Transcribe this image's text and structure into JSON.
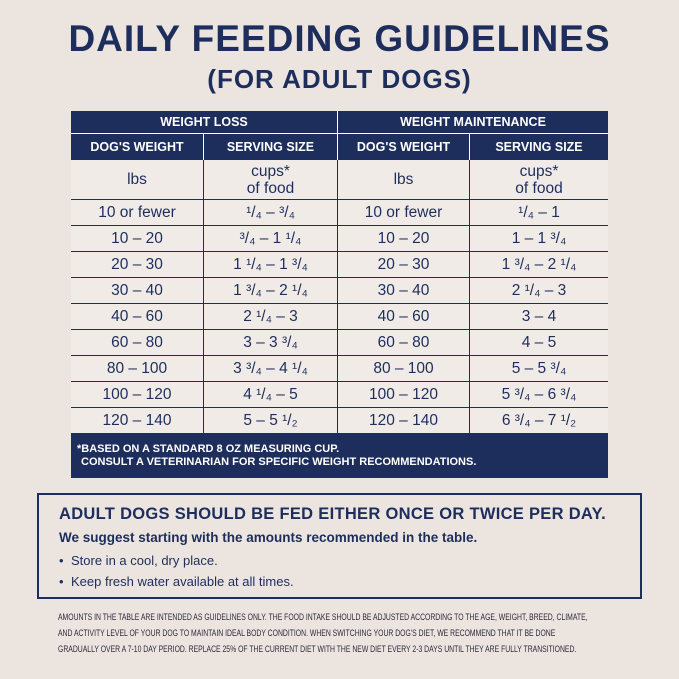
{
  "header": {
    "title": "DAILY FEEDING GUIDELINES",
    "subtitle": "(FOR ADULT DOGS)"
  },
  "table": {
    "groups": [
      "WEIGHT LOSS",
      "WEIGHT MAINTENANCE"
    ],
    "columns": [
      "DOG'S WEIGHT",
      "SERVING SIZE",
      "DOG'S WEIGHT",
      "SERVING SIZE"
    ],
    "units": [
      "lbs",
      "cups*\nof food",
      "lbs",
      "cups*\nof food"
    ],
    "rows": [
      [
        "10 or fewer",
        "¹/₄ – ³/₄",
        "10 or fewer",
        "¹/₄ – 1"
      ],
      [
        "10 – 20",
        "³/₄ – 1 ¹/₄",
        "10 – 20",
        "1 – 1 ³/₄"
      ],
      [
        "20 – 30",
        "1 ¹/₄ – 1 ³/₄",
        "20 – 30",
        "1 ³/₄ – 2 ¹/₄"
      ],
      [
        "30 – 40",
        "1 ³/₄ – 2 ¹/₄",
        "30 – 40",
        "2 ¹/₄ – 3"
      ],
      [
        "40 – 60",
        "2 ¹/₄ – 3",
        "40 – 60",
        "3 – 4"
      ],
      [
        "60 – 80",
        "3 – 3 ³/₄",
        "60 – 80",
        "4 – 5"
      ],
      [
        "80 – 100",
        "3 ³/₄ – 4 ¹/₄",
        "80 – 100",
        "5 – 5 ³/₄"
      ],
      [
        "100 – 120",
        "4 ¹/₄ – 5",
        "100 – 120",
        "5 ³/₄ – 6 ³/₄"
      ],
      [
        "120 – 140",
        "5 – 5 ¹/₂",
        "120 – 140",
        "6 ³/₄ – 7 ¹/₂"
      ]
    ],
    "footnote": [
      "*BASED ON A STANDARD 8 OZ MEASURING CUP.",
      "CONSULT A VETERINARIAN FOR SPECIFIC WEIGHT RECOMMENDATIONS."
    ]
  },
  "box": {
    "heading": "ADULT DOGS SHOULD BE FED EITHER ONCE OR TWICE PER DAY.",
    "intro": "We suggest starting with the amounts recommended in the table.",
    "bullets": [
      "Store in a cool, dry place.",
      "Keep fresh water available at all times."
    ]
  },
  "disclaimer": [
    "AMOUNTS IN THE TABLE ARE INTENDED AS GUIDELINES ONLY. THE FOOD INTAKE SHOULD BE ADJUSTED ACCORDING TO THE AGE, WEIGHT, BREED, CLIMATE,",
    "AND ACTIVITY LEVEL OF YOUR DOG TO MAINTAIN IDEAL BODY CONDITION. WHEN SWITCHING YOUR DOG'S DIET, WE RECOMMEND THAT IT BE DONE",
    "GRADUALLY OVER A 7-10 DAY PERIOD. REPLACE 25% OF THE CURRENT DIET WITH THE NEW DIET EVERY 2-3 DAYS UNTIL THEY ARE FULLY TRANSITIONED."
  ]
}
